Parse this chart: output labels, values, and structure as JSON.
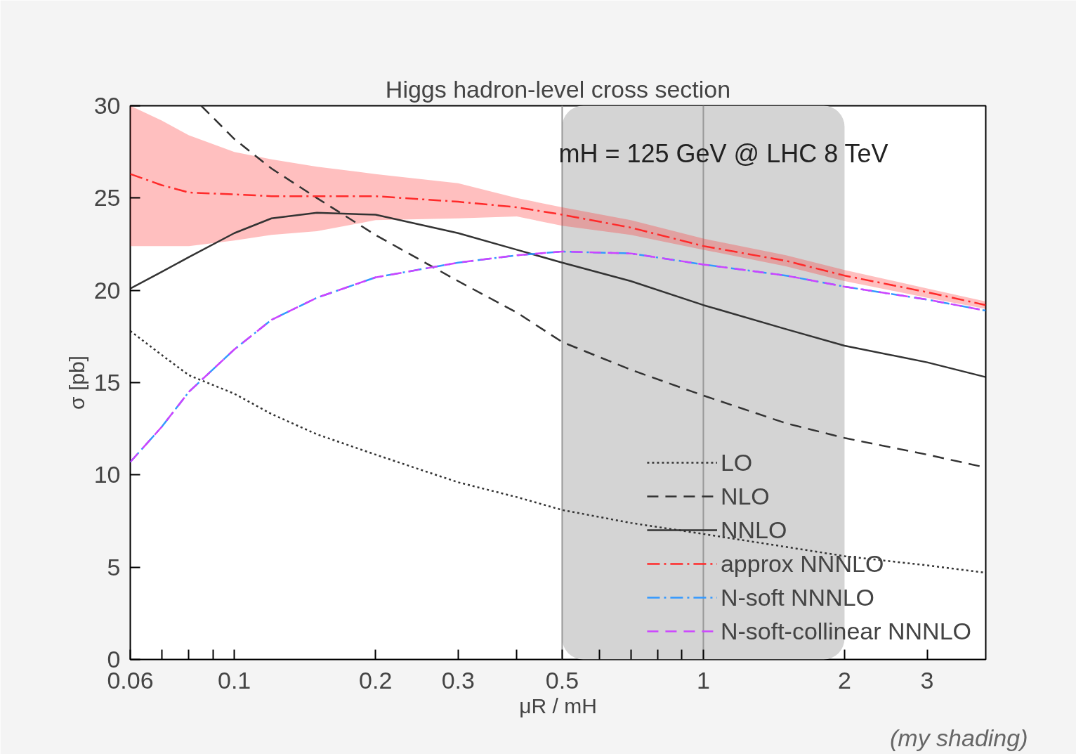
{
  "chart_data": {
    "type": "line",
    "title": "Higgs hadron-level cross section",
    "xlabel": "μR / mH",
    "ylabel": "σ [pb]",
    "log": "x",
    "grid": false,
    "legend": "bottom right",
    "xlim": [
      0.06,
      4
    ],
    "ylim": [
      0,
      30
    ],
    "xticks": [
      0.06,
      {
        "value": 0.07,
        "label": null
      },
      {
        "value": 0.08,
        "label": null
      },
      {
        "value": 0.09,
        "label": null
      },
      0.1,
      0.2,
      0.3,
      {
        "value": 0.4,
        "label": null
      },
      0.5,
      {
        "value": 0.6,
        "label": null
      },
      {
        "value": 0.7,
        "label": null
      },
      {
        "value": 0.8,
        "label": null
      },
      {
        "value": 0.9,
        "label": null
      },
      1,
      2,
      3
    ],
    "yticks": [
      0,
      5,
      10,
      15,
      20,
      25,
      30
    ],
    "x": [
      0.06,
      0.07,
      0.08,
      0.1,
      0.12,
      0.15,
      0.2,
      0.3,
      0.4,
      0.5,
      0.7,
      1,
      1.5,
      2,
      3,
      4
    ],
    "series": [
      {
        "name": "LO",
        "color": "#333333",
        "line_style": "dotted",
        "values": [
          17.8,
          16.5,
          15.4,
          14.4,
          13.3,
          12.2,
          11.1,
          9.6,
          8.8,
          8.1,
          7.4,
          6.8,
          6.1,
          5.6,
          5.1,
          4.7
        ]
      },
      {
        "name": "NLO",
        "color": "#333333",
        "line_style": "dashed",
        "x": [
          0.085,
          0.1,
          0.12,
          0.15,
          0.2,
          0.3,
          0.4,
          0.5,
          0.7,
          1,
          1.5,
          2,
          3,
          4
        ],
        "values": [
          30,
          28.2,
          26.6,
          25.0,
          23.0,
          20.5,
          18.8,
          17.2,
          15.7,
          14.3,
          12.8,
          12.0,
          11.1,
          10.4
        ]
      },
      {
        "name": "NNLO",
        "color": "#333333",
        "line_style": "solid",
        "values": [
          20.1,
          21.0,
          21.8,
          23.1,
          23.9,
          24.2,
          24.1,
          23.1,
          22.2,
          21.5,
          20.5,
          19.2,
          17.9,
          17.0,
          16.1,
          15.3
        ]
      },
      {
        "name": "approx NNNLO",
        "color": "#ff2a2a",
        "line_style": "dashdot",
        "values": [
          26.3,
          25.7,
          25.3,
          25.2,
          25.1,
          25.1,
          25.1,
          24.8,
          24.5,
          24.1,
          23.4,
          22.4,
          21.6,
          20.8,
          19.9,
          19.2
        ],
        "upper": [
          30,
          29.2,
          28.4,
          27.5,
          27.1,
          26.7,
          26.3,
          25.8,
          25.0,
          24.5,
          23.8,
          22.8,
          21.9,
          21.1,
          20.1,
          19.4
        ],
        "lower": [
          22.4,
          22.4,
          22.4,
          22.7,
          23.0,
          23.2,
          23.8,
          23.9,
          24.0,
          23.5,
          23.0,
          22.2,
          21.3,
          20.5,
          19.6,
          19.0
        ]
      },
      {
        "name": "N-soft NNNLO",
        "color": "#3399ff",
        "line_style": "dashdot",
        "values": [
          10.7,
          12.6,
          14.5,
          16.8,
          18.4,
          19.6,
          20.7,
          21.5,
          21.9,
          22.1,
          22.0,
          21.4,
          20.8,
          20.2,
          19.5,
          18.9
        ]
      },
      {
        "name": "N-soft-collinear NNNLO",
        "color": "#cc44ff",
        "line_style": "dashed",
        "values": [
          10.7,
          12.6,
          14.5,
          16.8,
          18.4,
          19.6,
          20.7,
          21.5,
          21.9,
          22.1,
          22.0,
          21.4,
          20.8,
          20.2,
          19.5,
          18.9
        ]
      }
    ],
    "bands": [
      {
        "axis": "x",
        "from": 0.5,
        "to": 2,
        "color": "#d4d4d4"
      }
    ],
    "ref_lines": [
      {
        "axis": "x",
        "value": 0.5,
        "color": "#999999"
      },
      {
        "axis": "x",
        "value": 1,
        "color": "#999999"
      }
    ],
    "annotations": [
      "mH = 125 GeV  @  LHC 8 TeV",
      "(my shading)"
    ]
  }
}
